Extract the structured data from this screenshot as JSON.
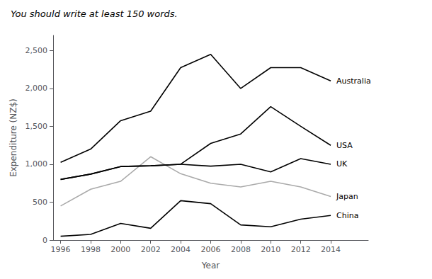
{
  "chart_data": {
    "type": "line",
    "title": "You should write at least 150 words.",
    "xlabel": "Year",
    "ylabel": "Expenditure (NZ$)",
    "x": [
      1996,
      1998,
      2000,
      2002,
      2004,
      2006,
      2008,
      2010,
      2012,
      2014
    ],
    "series": [
      {
        "name": "Australia",
        "color": "#000000",
        "values": [
          1025,
          1200,
          1575,
          1700,
          2275,
          2450,
          2000,
          2275,
          2275,
          2100
        ]
      },
      {
        "name": "Japan",
        "color": "#aaaaaa",
        "values": [
          450,
          670,
          775,
          1100,
          875,
          750,
          700,
          775,
          700,
          575
        ]
      },
      {
        "name": "UK",
        "color": "#000000",
        "values": [
          800,
          870,
          970,
          980,
          1000,
          975,
          1000,
          900,
          1075,
          1000
        ]
      },
      {
        "name": "USA",
        "color": "#000000",
        "values": [
          800,
          870,
          970,
          980,
          1000,
          1275,
          1400,
          1760,
          1500,
          1250
        ]
      },
      {
        "name": "China",
        "color": "#000000",
        "values": [
          50,
          75,
          220,
          155,
          520,
          480,
          200,
          175,
          275,
          325
        ]
      }
    ],
    "xlim": [
      1995.5,
      2016.5
    ],
    "xticks": [
      1996,
      1998,
      2000,
      2002,
      2004,
      2006,
      2008,
      2010,
      2012,
      2014
    ],
    "ylim": [
      0,
      2700
    ],
    "yticks": [
      0,
      500,
      {
        "value": 1000,
        "label": "1,000"
      },
      {
        "value": 1500,
        "label": "1,500"
      },
      {
        "value": 2000,
        "label": "2,000"
      },
      {
        "value": 2500,
        "label": "2,500"
      }
    ],
    "grid": false
  }
}
